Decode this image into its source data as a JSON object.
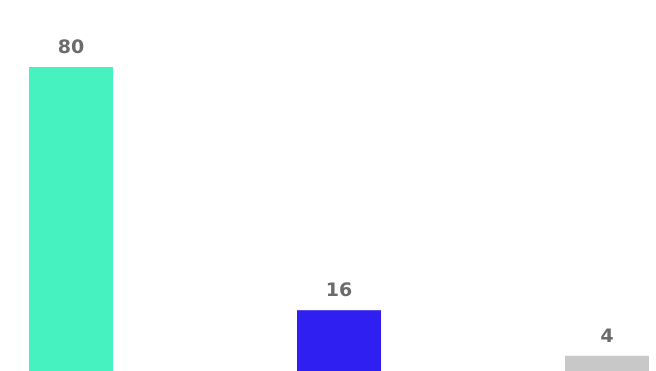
{
  "chart_data": {
    "type": "bar",
    "categories": [
      "",
      "",
      ""
    ],
    "values": [
      80,
      16,
      4
    ],
    "value_labels": [
      "80",
      "16",
      "4"
    ],
    "colors": [
      "#46f2bf",
      "#2f1ff0",
      "#c8c8c8"
    ],
    "ylim": [
      0,
      80
    ],
    "grid": false,
    "legend": "none"
  }
}
